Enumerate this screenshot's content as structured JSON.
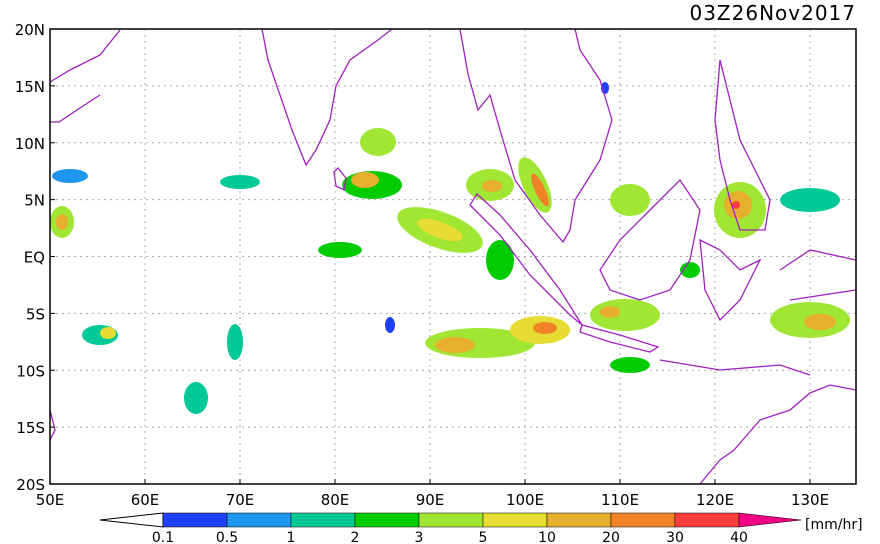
{
  "map": {
    "title": "03Z26Nov2017",
    "lat_labels": [
      "20N",
      "15N",
      "10N",
      "5N",
      "EQ",
      "5S",
      "10S",
      "15S",
      "20S"
    ],
    "lon_labels": [
      "50E",
      "60E",
      "70E",
      "80E",
      "90E",
      "100E",
      "110E",
      "120E",
      "130E"
    ],
    "colorbar": {
      "labels": [
        "0.1",
        "0.5",
        "1",
        "2",
        "3",
        "5",
        "10",
        "20",
        "30",
        "40"
      ],
      "colors": [
        "#2040ff",
        "#1e96f0",
        "#00c896",
        "#00cc00",
        "#a0e632",
        "#e6dc32",
        "#e6af2d",
        "#f08228",
        "#fa3c3c",
        "#f00082"
      ],
      "unit": "[mm/hr]"
    }
  }
}
